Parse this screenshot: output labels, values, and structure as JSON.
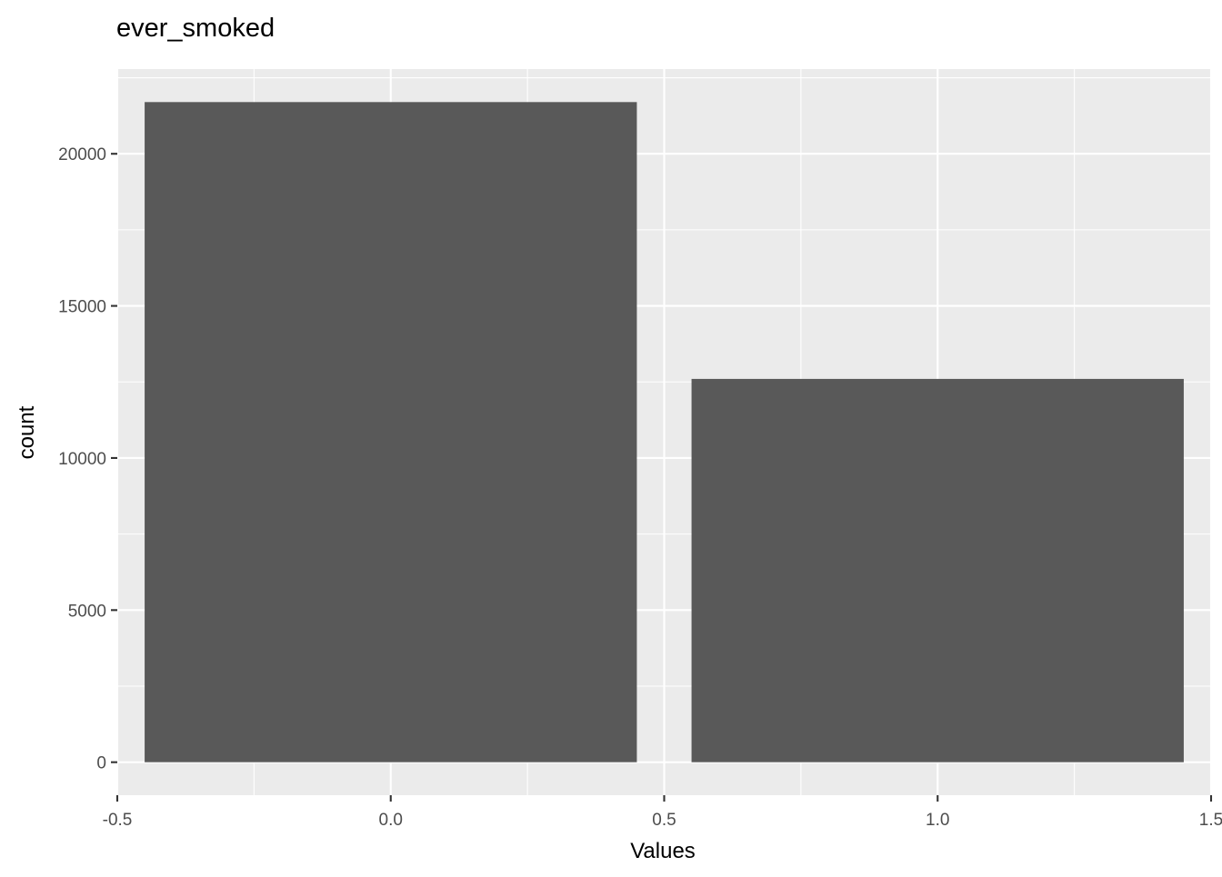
{
  "chart_data": {
    "type": "bar",
    "title": "ever_smoked",
    "xlabel": "Values",
    "ylabel": "count",
    "categories": [
      "0",
      "1"
    ],
    "x": [
      0,
      1
    ],
    "values": [
      21700,
      12600
    ],
    "bar_width": 0.9,
    "xlim": [
      -0.5,
      1.5
    ],
    "ylim": [
      -1085,
      22785
    ],
    "x_ticks": [
      -0.5,
      0.0,
      0.5,
      1.0,
      1.5
    ],
    "x_tick_labels": [
      "-0.5",
      "0.0",
      "0.5",
      "1.0",
      "1.5"
    ],
    "y_ticks": [
      0,
      5000,
      10000,
      15000,
      20000
    ],
    "y_tick_labels": [
      "0",
      "5000",
      "10000",
      "15000",
      "20000"
    ],
    "grid": true,
    "legend": "none",
    "colors": {
      "panel": "#ebebeb",
      "bar": "#595959",
      "grid": "#ffffff"
    }
  }
}
